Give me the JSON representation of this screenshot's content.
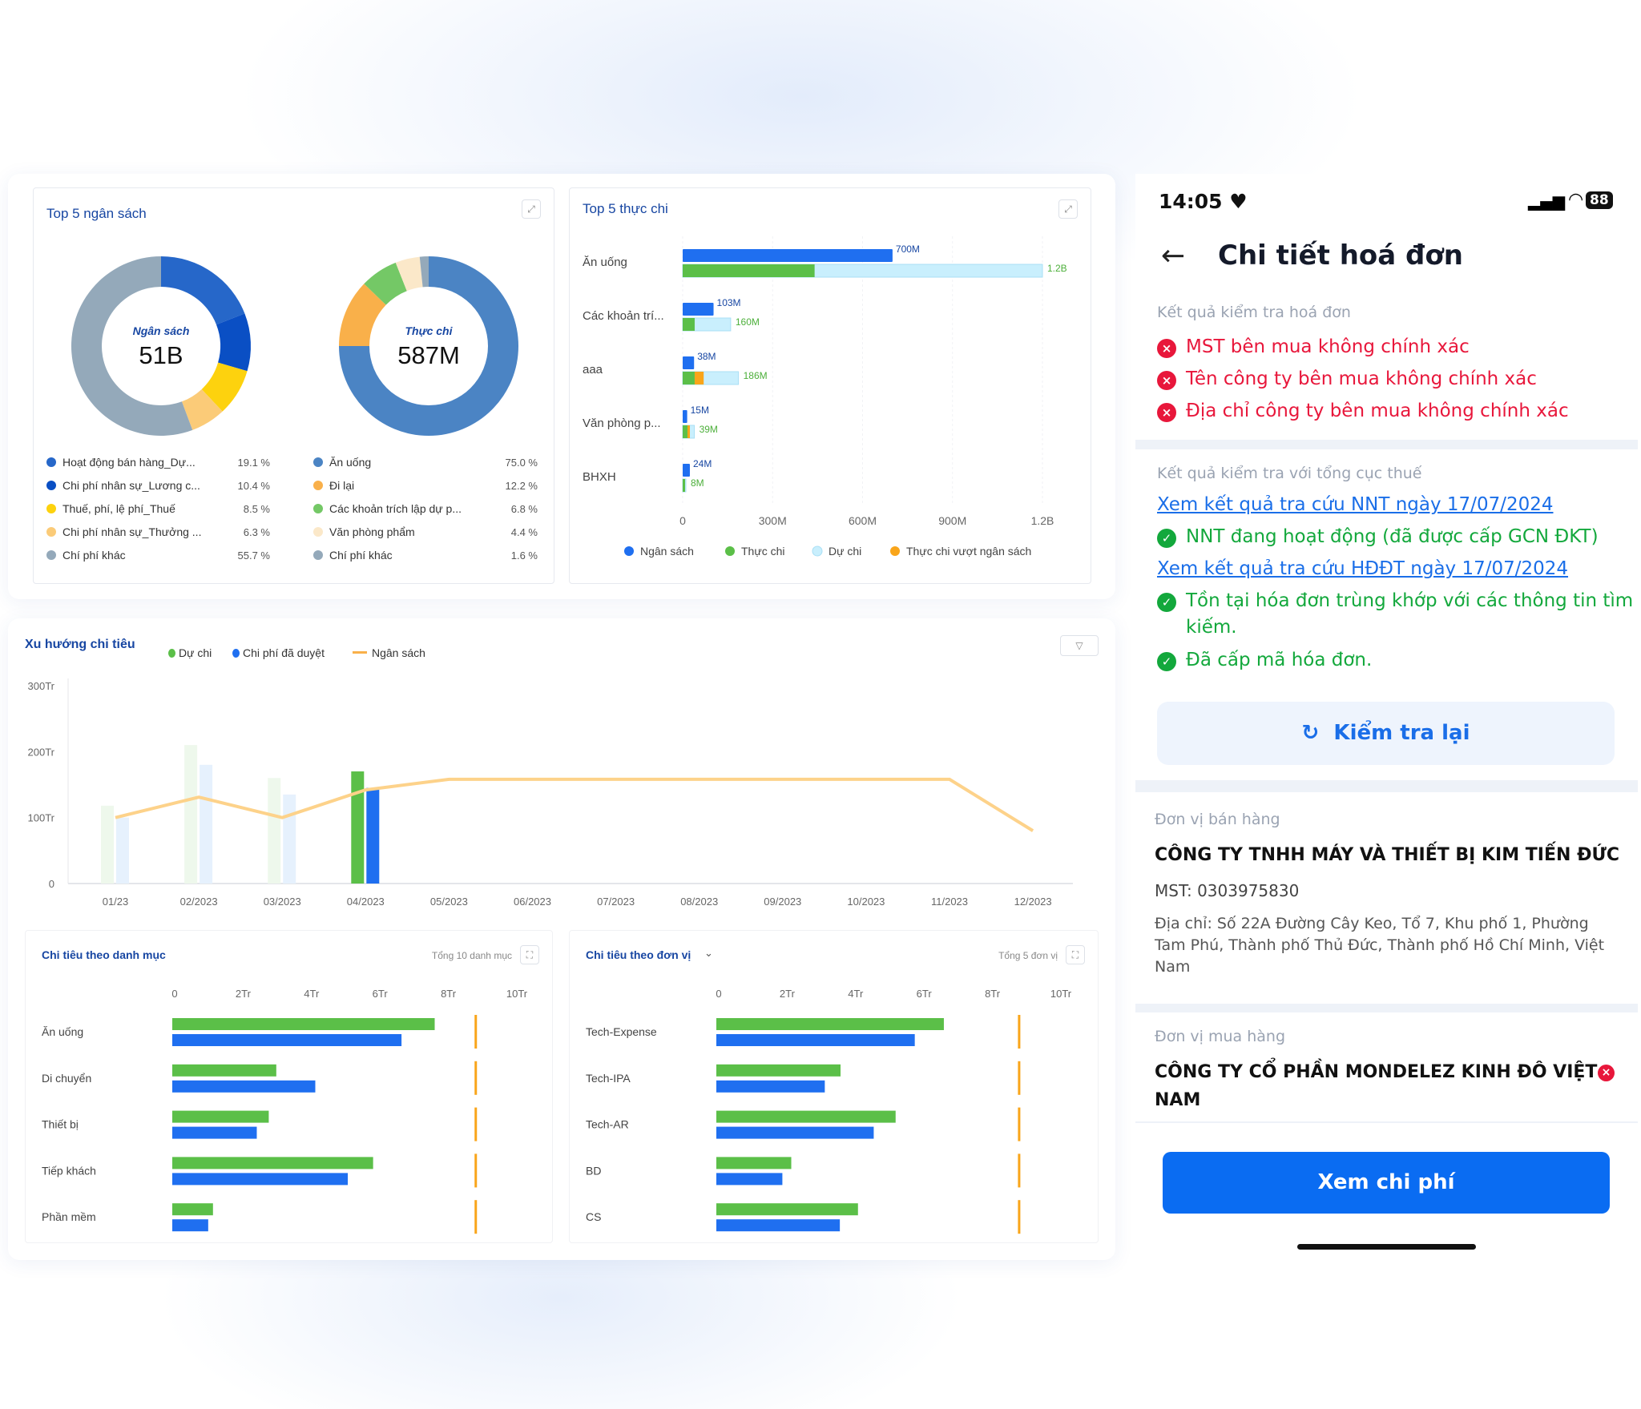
{
  "top_budget": {
    "title": "Top 5 ngân sách",
    "center_label": "Ngân sách",
    "center_value": "51B",
    "items": [
      {
        "label": "Hoạt động bán hàng_Dự...",
        "pct": "19.1 %",
        "value": 19.1,
        "color": "#2667c9"
      },
      {
        "label": "Chi phí nhân sự_Lương c...",
        "pct": "10.4 %",
        "value": 10.4,
        "color": "#0a4fc4"
      },
      {
        "label": "Thuế, phí, lệ phí_Thuế",
        "pct": "8.5 %",
        "value": 8.5,
        "color": "#fdd20e"
      },
      {
        "label": "Chi phí nhân sự_Thưởng ...",
        "pct": "6.3 %",
        "value": 6.3,
        "color": "#fbcb78"
      },
      {
        "label": "Chí phí khác",
        "pct": "55.7 %",
        "value": 55.7,
        "color": "#94a9ba"
      }
    ]
  },
  "top_actual": {
    "center_label": "Thực chi",
    "center_value": "587M",
    "items": [
      {
        "label": "Ăn uống",
        "pct": "75.0 %",
        "value": 75.0,
        "color": "#4b84c4"
      },
      {
        "label": "Đi lại",
        "pct": "12.2 %",
        "value": 12.2,
        "color": "#f9b04a"
      },
      {
        "label": "Các khoản trích lập dự p...",
        "pct": "6.8 %",
        "value": 6.8,
        "color": "#74c866"
      },
      {
        "label": "Văn phòng phẩm",
        "pct": "4.4 %",
        "value": 4.4,
        "color": "#fbe8c9"
      },
      {
        "label": "Chí phí khác",
        "pct": "1.6 %",
        "value": 1.6,
        "color": "#94a9ba"
      }
    ]
  },
  "chart_data": [
    {
      "type": "bar",
      "title": "Top 5 thực chi",
      "orientation": "horizontal",
      "xlim": [
        0,
        1.2
      ],
      "x_unit": "B",
      "x_ticks": [
        "0",
        "300M",
        "600M",
        "900M",
        "1.2B"
      ],
      "categories": [
        "Ăn uống",
        "Các khoản trí...",
        "aaa",
        "Văn phòng p...",
        "BHXH"
      ],
      "series": [
        {
          "name": "Ngân sách",
          "color": "#1f6ff0",
          "values": [
            0.7,
            0.103,
            0.038,
            0.015,
            0.024
          ],
          "labels": [
            "700M",
            "103M",
            "38M",
            "15M",
            "24M"
          ]
        },
        {
          "name": "Thực chi",
          "color": "#5bbf48",
          "values": [
            0.44,
            0.04,
            0.04,
            0.016,
            0.004
          ]
        },
        {
          "name": "Dự chi",
          "color": "#c9effd",
          "values": [
            1.2,
            0.16,
            0.186,
            0.039,
            0.008
          ],
          "labels": [
            "1.2B",
            "160M",
            "186M",
            "39M",
            "8M"
          ]
        },
        {
          "name": "Thực chi vượt ngân sách",
          "color": "#f9a51a",
          "values": [
            0,
            0,
            0.03,
            0.004,
            0
          ]
        }
      ],
      "legend": "bottom"
    },
    {
      "type": "bar+line",
      "title": "Xu hướng chi tiêu",
      "ylim": [
        0,
        300
      ],
      "y_ticks": [
        "0",
        "100Tr",
        "200Tr",
        "300Tr"
      ],
      "categories": [
        "01/23",
        "02/2023",
        "03/2023",
        "04/2023",
        "05/2023",
        "06/2023",
        "07/2023",
        "08/2023",
        "09/2023",
        "10/2023",
        "11/2023",
        "12/2023"
      ],
      "series": [
        {
          "name": "Dự chi",
          "type": "bar",
          "color": "#5bbf48",
          "values": [
            118,
            210,
            160,
            170,
            null,
            null,
            null,
            null,
            null,
            null,
            null,
            null
          ]
        },
        {
          "name": "Chi phí đã duyệt",
          "type": "bar",
          "color": "#1f6ff0",
          "values": [
            100,
            180,
            135,
            145,
            null,
            null,
            null,
            null,
            null,
            null,
            null,
            null
          ]
        },
        {
          "name": "Ngân sách",
          "type": "line",
          "color": "#fdd28a",
          "values": [
            100,
            131,
            100,
            142,
            158,
            158,
            158,
            158,
            158,
            158,
            158,
            80
          ]
        }
      ],
      "legend": "top-left"
    },
    {
      "type": "bar",
      "title": "Chi tiêu theo danh mục",
      "subtitle": "Tổng 10 danh mục",
      "orientation": "horizontal",
      "xlim": [
        0,
        10
      ],
      "x_ticks": [
        "0",
        "2Tr",
        "4Tr",
        "6Tr",
        "8Tr",
        "10Tr"
      ],
      "categories": [
        "Ăn uống",
        "Di chuyển",
        "Thiết bị",
        "Tiếp khách",
        "Phần mềm"
      ],
      "series": [
        {
          "color": "#5bbf48",
          "values": [
            7.67,
            3.04,
            2.82,
            5.87,
            1.19
          ]
        },
        {
          "color": "#1f6ff0",
          "values": [
            6.7,
            4.18,
            2.47,
            5.13,
            1.05
          ]
        }
      ],
      "reference_line": {
        "value": 8.8,
        "color": "#f9a51a"
      }
    },
    {
      "type": "bar",
      "title": "Chi tiêu theo đơn vị",
      "subtitle": "Tổng 5 đơn vị",
      "orientation": "horizontal",
      "xlim": [
        0,
        10
      ],
      "x_ticks": [
        "0",
        "2Tr",
        "4Tr",
        "6Tr",
        "8Tr",
        "10Tr"
      ],
      "categories": [
        "Tech-Expense",
        "Tech-IPA",
        "Tech-AR",
        "BD",
        "CS"
      ],
      "series": [
        {
          "color": "#5bbf48",
          "values": [
            6.65,
            3.63,
            5.24,
            2.19,
            4.14
          ]
        },
        {
          "color": "#1f6ff0",
          "values": [
            5.8,
            3.17,
            4.6,
            1.93,
            3.61
          ]
        }
      ],
      "reference_line": {
        "value": 8.78,
        "color": "#f9a51a"
      }
    }
  ],
  "phone": {
    "time": "14:05",
    "battery": "88",
    "title": "Chi tiết hoá đơn",
    "check_label": "Kết quả kiểm tra hoá đơn",
    "errors": [
      "MST bên mua không chính xác",
      "Tên công ty bên mua không chính xác",
      "Địa chỉ công ty bên mua không chính xác"
    ],
    "tax_label": "Kết quả kiểm tra với tổng cục thuế",
    "link1": "Xem kết quả tra cứu NNT ngày 17/07/2024",
    "ok1": "NNT đang hoạt động (đã được cấp GCN ĐKT)",
    "link2": "Xem kết quả tra cứu HĐĐT ngày 17/07/2024",
    "ok2a": "Tồn tại hóa đơn trùng khớp với các thông tin tìm",
    "ok2b": "kiếm.",
    "ok3": "Đã cấp mã hóa đơn.",
    "recheck": "Kiểm tra lại",
    "seller_label": "Đơn vị bán hàng",
    "seller_name": "CÔNG TY TNHH MÁY VÀ THIẾT BỊ KIM TIẾN ĐỨC",
    "seller_mst": "MST: 0303975830",
    "seller_addr": [
      "Địa chỉ: Số 22A Đường Cây Keo, Tổ 7, Khu phố 1, Phường",
      "Tam Phú, Thành phố Thủ Đức, Thành phố Hồ Chí Minh, Việt",
      "Nam"
    ],
    "buyer_label": "Đơn vị mua hàng",
    "buyer_name": [
      "CÔNG TY CỔ PHẦN MONDELEZ KINH ĐÔ VIỆT",
      "NAM"
    ],
    "cta": "Xem chi phí"
  }
}
